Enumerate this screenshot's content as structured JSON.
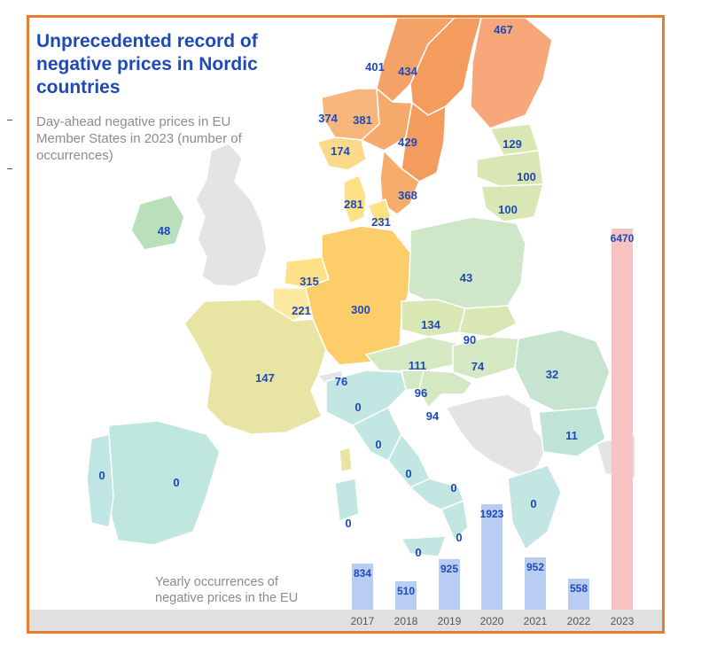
{
  "header": {
    "title_lines": [
      "Unprecedented record of",
      "negative prices in Nordic",
      "countries"
    ],
    "subtitle_lines": [
      "Day-ahead negative prices in EU",
      "Member States in 2023 (number of",
      "occurrences)"
    ]
  },
  "yearly_caption_lines": [
    "Yearly occurrences of",
    "negative prices in the EU"
  ],
  "colors": {
    "frame": "#e87d2e",
    "title": "#1f49b6",
    "value_label": "#1f49b6",
    "bar": "#b9cdf3",
    "bar_highlight": "#f7c3c3",
    "non_eu": "#e4e4e4",
    "axis_band": "#e0e0e0"
  },
  "map_values": [
    {
      "region": "Norway north",
      "value": 401
    },
    {
      "region": "Sweden north",
      "value": 434
    },
    {
      "region": "Finland",
      "value": 467
    },
    {
      "region": "Norway west",
      "value": 374
    },
    {
      "region": "Norway central",
      "value": 381
    },
    {
      "region": "Sweden central",
      "value": 429
    },
    {
      "region": "Norway south",
      "value": 174
    },
    {
      "region": "Estonia",
      "value": 129
    },
    {
      "region": "Latvia",
      "value": 100
    },
    {
      "region": "Lithuania",
      "value": 100
    },
    {
      "region": "Sweden south",
      "value": 368
    },
    {
      "region": "Denmark west",
      "value": 281
    },
    {
      "region": "Denmark east",
      "value": 231
    },
    {
      "region": "Ireland",
      "value": 48
    },
    {
      "region": "Poland",
      "value": 43
    },
    {
      "region": "Netherlands",
      "value": 315
    },
    {
      "region": "Belgium",
      "value": 221
    },
    {
      "region": "Germany",
      "value": 300
    },
    {
      "region": "Czechia",
      "value": 134
    },
    {
      "region": "Slovakia",
      "value": 90
    },
    {
      "region": "France",
      "value": 147
    },
    {
      "region": "Austria",
      "value": 111
    },
    {
      "region": "Hungary",
      "value": 74
    },
    {
      "region": "Romania",
      "value": 32
    },
    {
      "region": "Switzerland",
      "value": 76
    },
    {
      "region": "Slovenia",
      "value": 96
    },
    {
      "region": "Croatia",
      "value": 94
    },
    {
      "region": "Italy north",
      "value": 0
    },
    {
      "region": "Italy centre-north",
      "value": 0
    },
    {
      "region": "Bulgaria",
      "value": 11
    },
    {
      "region": "Portugal",
      "value": 0
    },
    {
      "region": "Spain",
      "value": 0
    },
    {
      "region": "Italy centre-south",
      "value": 0
    },
    {
      "region": "Italy south",
      "value": 0
    },
    {
      "region": "Sardinia",
      "value": 0
    },
    {
      "region": "Greece",
      "value": 0
    },
    {
      "region": "Calabria",
      "value": 0
    },
    {
      "region": "Sicily",
      "value": 0
    }
  ],
  "chart_data": {
    "type": "bar",
    "categories": [
      "2017",
      "2018",
      "2019",
      "2020",
      "2021",
      "2022",
      "2023"
    ],
    "values": [
      834,
      510,
      925,
      1923,
      952,
      558,
      6470
    ],
    "highlight": "2023",
    "ylim": [
      0,
      6500
    ]
  }
}
